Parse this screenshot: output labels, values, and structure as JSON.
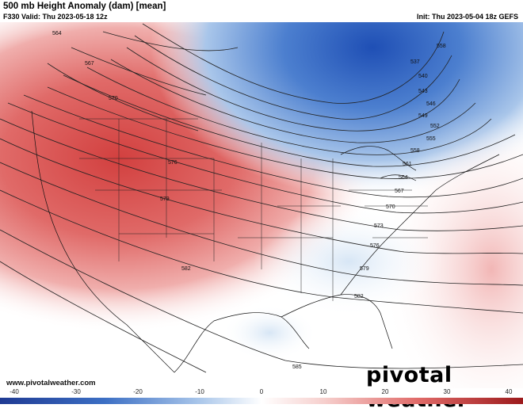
{
  "header": {
    "title": "500 mb Height Anomaly (dam) [mean]",
    "valid": "F330 Valid: Thu 2023-05-18 12z",
    "init": "Init: Thu 2023-05-04 18z GEFS"
  },
  "footer": {
    "website": "www.pivotalweather.com",
    "logo": "pivotal weather"
  },
  "colorbar": {
    "ticks": [
      "-40",
      "-30",
      "-20",
      "-10",
      "0",
      "10",
      "20",
      "30",
      "40"
    ],
    "colors": {
      "neg_strong": "#1f4fb5",
      "neg_mid": "#6f9fd8",
      "neg_weak": "#cfe0f2",
      "neutral": "#ffffff",
      "pos_weak": "#f6d0cf",
      "pos_mid": "#e98a88",
      "pos_strong": "#c02a2c"
    }
  },
  "contours": [
    "564",
    "567",
    "570",
    "576",
    "579",
    "582",
    "585",
    "558",
    "537",
    "540",
    "543",
    "546",
    "549",
    "552",
    "555",
    "558",
    "561",
    "564",
    "567",
    "570",
    "573",
    "576",
    "579",
    "582"
  ]
}
